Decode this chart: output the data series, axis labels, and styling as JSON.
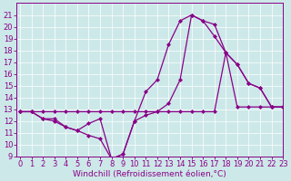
{
  "bg_color": "#cde8e8",
  "line_color": "#880088",
  "marker": "D",
  "markersize": 2.0,
  "linewidth": 0.9,
  "ylim": [
    9,
    22
  ],
  "xlim": [
    -0.3,
    23
  ],
  "yticks": [
    9,
    10,
    11,
    12,
    13,
    14,
    15,
    16,
    17,
    18,
    19,
    20,
    21
  ],
  "xticks": [
    0,
    1,
    2,
    3,
    4,
    5,
    6,
    7,
    8,
    9,
    10,
    11,
    12,
    13,
    14,
    15,
    16,
    17,
    18,
    19,
    20,
    21,
    22,
    23
  ],
  "xlabel": "Windchill (Refroidissement éolien,°C)",
  "xlabel_fontsize": 6.5,
  "tick_fontsize": 6.0,
  "series": [
    [
      12.8,
      12.8,
      12.8,
      12.8,
      12.8,
      12.8,
      12.8,
      12.8,
      12.8,
      12.8,
      12.8,
      12.8,
      12.8,
      12.8,
      12.8,
      12.8,
      12.8,
      12.8,
      17.8,
      13.2,
      13.2,
      13.2,
      13.2,
      13.2
    ],
    [
      12.8,
      12.8,
      12.2,
      12.2,
      11.5,
      11.2,
      11.8,
      12.2,
      8.8,
      9.2,
      12.0,
      12.5,
      12.8,
      13.5,
      15.5,
      21.0,
      20.5,
      20.2,
      17.8,
      16.8,
      15.2,
      14.8,
      13.2,
      13.2
    ],
    [
      12.8,
      12.8,
      12.2,
      12.0,
      11.5,
      11.2,
      10.8,
      10.5,
      8.8,
      9.2,
      12.0,
      14.5,
      15.5,
      18.5,
      20.5,
      21.0,
      20.5,
      19.2,
      17.8,
      16.8,
      15.2,
      14.8,
      13.2,
      13.2
    ]
  ]
}
